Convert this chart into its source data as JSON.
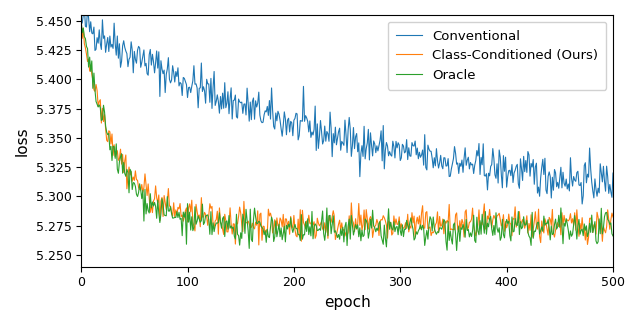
{
  "title": "",
  "xlabel": "epoch",
  "ylabel": "loss",
  "xlim": [
    0,
    500
  ],
  "ylim": [
    5.24,
    5.455
  ],
  "yticks": [
    5.25,
    5.275,
    5.3,
    5.325,
    5.35,
    5.375,
    5.4,
    5.425,
    5.45
  ],
  "xticks": [
    0,
    100,
    200,
    300,
    400,
    500
  ],
  "n_epochs": 501,
  "seed": 42,
  "conventional_color": "#1f77b4",
  "ours_color": "#ff7f0e",
  "oracle_color": "#2ca02c",
  "conventional_label": "Conventional",
  "ours_label": "Class-Conditioned (Ours)",
  "oracle_label": "Oracle",
  "linewidth": 0.8,
  "figsize": [
    6.4,
    3.25
  ],
  "dpi": 100
}
